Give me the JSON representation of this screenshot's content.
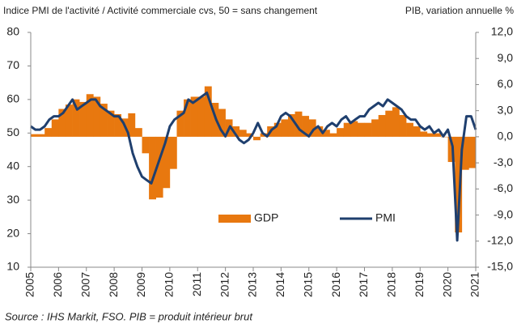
{
  "chart_data": {
    "type": "bar-line",
    "title": "Indice PMI de l'activité  / Activité commerciale cvs, 50 = sans changement",
    "y2_title": "PIB, variation annuelle %",
    "source": "Source : IHS Markit, FSO. PIB = produit intérieur brut",
    "xlim": [
      2005,
      2021
    ],
    "xticks": [
      2005,
      2006,
      2007,
      2008,
      2009,
      2010,
      2011,
      2012,
      2013,
      2014,
      2015,
      2016,
      2017,
      2018,
      2019,
      2020,
      2021
    ],
    "ylim": [
      10,
      80
    ],
    "yticks": [
      10,
      20,
      30,
      40,
      50,
      60,
      70,
      80
    ],
    "y2lim": [
      -15,
      12
    ],
    "y2ticks": [
      {
        "value": -15,
        "label": "-15,0"
      },
      {
        "value": -12,
        "label": "-12,0"
      },
      {
        "value": -9,
        "label": "-9,0"
      },
      {
        "value": -6,
        "label": "-6,0"
      },
      {
        "value": -3,
        "label": "-3,0"
      },
      {
        "value": 0,
        "label": "0,0"
      },
      {
        "value": 3,
        "label": "3,0"
      },
      {
        "value": 6,
        "label": "6,0"
      },
      {
        "value": 9,
        "label": "9,0"
      },
      {
        "value": 12,
        "label": "12,0"
      }
    ],
    "series": [
      {
        "name": "GDP",
        "type": "bar",
        "axis": "y2",
        "color": "#e8780f",
        "values": [
          0.3,
          0.3,
          1.0,
          2.0,
          3.2,
          3.7,
          4.3,
          4.0,
          4.9,
          4.6,
          3.8,
          3.0,
          2.6,
          2.1,
          2.7,
          1.0,
          -1.9,
          -7.2,
          -7.0,
          -5.9,
          -3.7,
          3.0,
          4.3,
          4.6,
          4.6,
          5.8,
          3.9,
          3.2,
          2.0,
          1.2,
          0.8,
          0.4,
          -0.4,
          0.4,
          1.2,
          1.6,
          2.0,
          2.6,
          2.9,
          2.4,
          2.0,
          1.2,
          0.8,
          0.4,
          1.0,
          1.6,
          1.8,
          1.6,
          1.6,
          2.0,
          2.5,
          3.0,
          3.4,
          2.5,
          1.6,
          1.2,
          0.6,
          0.4,
          0.4,
          0.0,
          -2.9,
          -11.0,
          -3.8,
          -3.6
        ]
      },
      {
        "name": "PMI",
        "type": "line",
        "color": "#1f3f6e",
        "values": [
          52,
          51,
          51,
          52,
          54,
          55,
          55,
          56,
          58,
          60,
          57,
          58,
          59,
          60,
          60,
          58,
          57,
          56,
          55,
          55,
          53,
          50,
          44,
          40,
          37,
          36,
          35,
          39,
          43,
          47,
          52,
          54,
          55,
          56,
          60,
          59,
          60,
          61,
          62,
          58,
          54,
          51,
          49,
          52,
          50,
          48,
          47,
          48,
          50,
          53,
          50,
          49,
          51,
          52,
          55,
          56,
          55,
          53,
          51,
          50,
          49,
          51,
          52,
          50,
          52,
          53,
          52,
          54,
          55,
          53,
          54,
          55,
          55,
          57,
          58,
          59,
          58,
          60,
          59,
          58,
          57,
          55,
          54,
          54,
          52,
          51,
          52,
          50,
          51,
          49,
          51,
          46,
          18,
          45,
          55,
          55,
          51
        ]
      }
    ]
  }
}
